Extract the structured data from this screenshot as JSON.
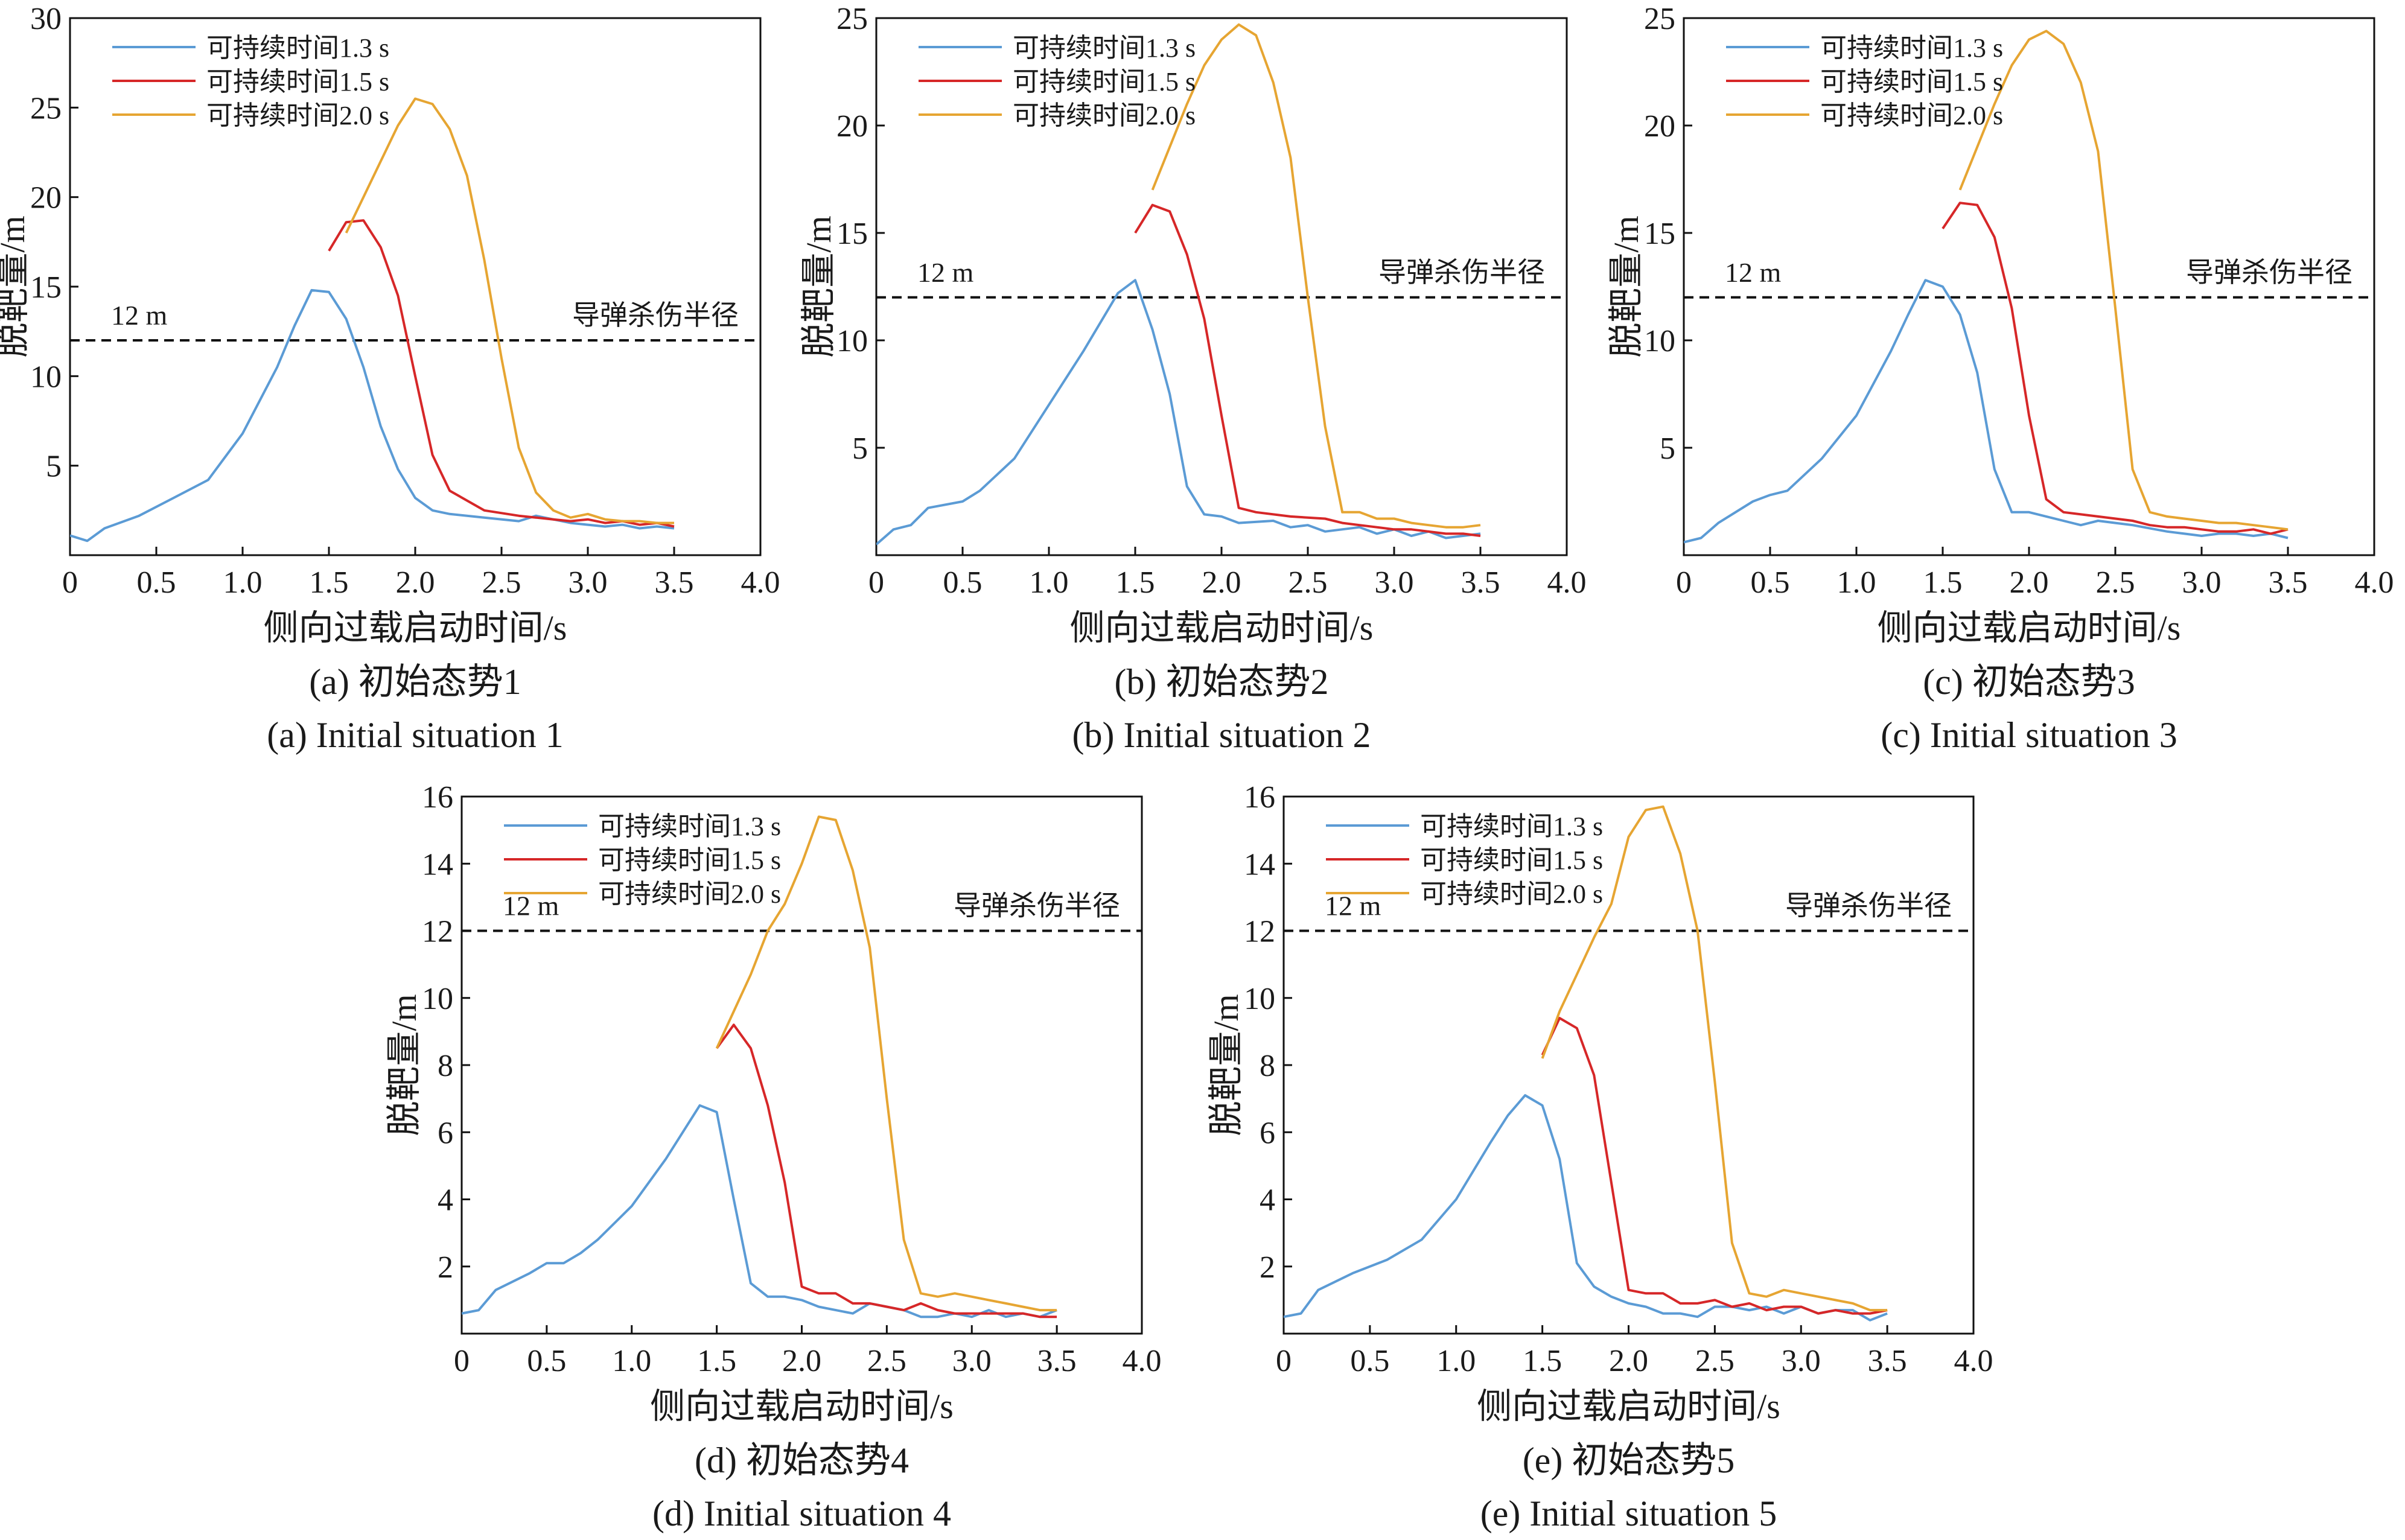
{
  "figure": {
    "legend_labels": [
      "可持续时间1.3 s",
      "可持续时间1.5 s",
      "可持续时间2.0 s"
    ],
    "series_colors": [
      "#5b9bd5",
      "#d62728",
      "#e6a532"
    ],
    "ref_line_color": "#111111",
    "ylabel": "脱靶量/m",
    "xlabel": "侧向过载启动时间/s",
    "ref_label": "12 m",
    "ref_annotation": "导弹杀伤半径"
  },
  "chart_data": [
    {
      "type": "line",
      "caption_cn": "(a) 初始态势1",
      "caption_en": "(a) Initial situation 1",
      "xlabel": "侧向过载启动时间/s",
      "ylabel": "脱靶量/m",
      "xlim": [
        0,
        4.0
      ],
      "ylim": [
        0,
        30
      ],
      "xticks": [
        0,
        0.5,
        1.0,
        1.5,
        2.0,
        2.5,
        3.0,
        3.5,
        4.0
      ],
      "xtick_labels": [
        "0",
        "0.5",
        "1.0",
        "1.5",
        "2.0",
        "2.5",
        "3.0",
        "3.5",
        "4.0"
      ],
      "yticks": [
        5,
        10,
        15,
        20,
        25,
        30
      ],
      "ytick_labels": [
        "5",
        "10",
        "15",
        "20",
        "25",
        "30"
      ],
      "reference_line": {
        "y": 12,
        "label": "12 m",
        "annotation": "导弹杀伤半径"
      },
      "series": [
        {
          "name": "可持续时间1.3 s",
          "x": [
            0,
            0.1,
            0.2,
            0.4,
            0.6,
            0.8,
            1.0,
            1.2,
            1.3,
            1.4,
            1.5,
            1.6,
            1.7,
            1.8,
            1.9,
            2.0,
            2.1,
            2.2,
            2.4,
            2.6,
            2.7,
            2.8,
            2.9,
            3.0,
            3.1,
            3.2,
            3.3,
            3.4,
            3.5
          ],
          "y": [
            1.1,
            0.8,
            1.5,
            2.2,
            3.2,
            4.2,
            6.8,
            10.5,
            12.8,
            14.8,
            14.7,
            13.2,
            10.5,
            7.2,
            4.8,
            3.2,
            2.5,
            2.3,
            2.1,
            1.9,
            2.2,
            2.0,
            1.8,
            1.7,
            1.6,
            1.7,
            1.5,
            1.6,
            1.5
          ]
        },
        {
          "name": "可持续时间1.5 s",
          "x": [
            1.5,
            1.6,
            1.7,
            1.8,
            1.9,
            2.0,
            2.1,
            2.2,
            2.4,
            2.6,
            2.7,
            2.8,
            2.9,
            3.0,
            3.1,
            3.2,
            3.3,
            3.4,
            3.5
          ],
          "y": [
            17.0,
            18.6,
            18.7,
            17.2,
            14.5,
            10.0,
            5.6,
            3.6,
            2.5,
            2.2,
            2.1,
            2.0,
            1.9,
            2.0,
            1.8,
            1.9,
            1.7,
            1.8,
            1.6
          ]
        },
        {
          "name": "可持续时间2.0 s",
          "x": [
            1.6,
            1.7,
            1.8,
            1.9,
            2.0,
            2.1,
            2.2,
            2.3,
            2.4,
            2.5,
            2.6,
            2.7,
            2.8,
            2.9,
            3.0,
            3.1,
            3.2,
            3.3,
            3.4,
            3.5
          ],
          "y": [
            18.0,
            20.0,
            22.0,
            24.0,
            25.5,
            25.2,
            23.8,
            21.2,
            16.5,
            11.0,
            6.0,
            3.5,
            2.5,
            2.1,
            2.3,
            2.0,
            1.9,
            1.9,
            1.8,
            1.8
          ]
        }
      ]
    },
    {
      "type": "line",
      "caption_cn": "(b) 初始态势2",
      "caption_en": "(b) Initial situation 2",
      "xlabel": "侧向过载启动时间/s",
      "ylabel": "脱靶量/m",
      "xlim": [
        0,
        4.0
      ],
      "ylim": [
        0,
        25
      ],
      "xticks": [
        0,
        0.5,
        1.0,
        1.5,
        2.0,
        2.5,
        3.0,
        3.5,
        4.0
      ],
      "xtick_labels": [
        "0",
        "0.5",
        "1.0",
        "1.5",
        "2.0",
        "2.5",
        "3.0",
        "3.5",
        "4.0"
      ],
      "yticks": [
        5,
        10,
        15,
        20,
        25
      ],
      "ytick_labels": [
        "5",
        "10",
        "15",
        "20",
        "25"
      ],
      "reference_line": {
        "y": 12,
        "label": "12 m",
        "annotation": "导弹杀伤半径"
      },
      "series": [
        {
          "name": "可持续时间1.3 s",
          "x": [
            0,
            0.1,
            0.2,
            0.3,
            0.5,
            0.6,
            0.8,
            1.0,
            1.2,
            1.4,
            1.5,
            1.6,
            1.7,
            1.8,
            1.9,
            2.0,
            2.1,
            2.3,
            2.4,
            2.5,
            2.6,
            2.8,
            2.9,
            3.0,
            3.1,
            3.2,
            3.3,
            3.4,
            3.5
          ],
          "y": [
            0.5,
            1.2,
            1.4,
            2.2,
            2.5,
            3.0,
            4.5,
            7.0,
            9.5,
            12.2,
            12.8,
            10.5,
            7.5,
            3.2,
            1.9,
            1.8,
            1.5,
            1.6,
            1.3,
            1.4,
            1.1,
            1.3,
            1.0,
            1.2,
            0.9,
            1.1,
            0.8,
            0.9,
            1.0
          ]
        },
        {
          "name": "可持续时间1.5 s",
          "x": [
            1.5,
            1.6,
            1.7,
            1.8,
            1.9,
            2.0,
            2.1,
            2.2,
            2.4,
            2.6,
            2.7,
            2.8,
            2.9,
            3.0,
            3.1,
            3.2,
            3.3,
            3.4,
            3.5
          ],
          "y": [
            15.0,
            16.3,
            16.0,
            14.0,
            11.0,
            6.5,
            2.2,
            2.0,
            1.8,
            1.7,
            1.5,
            1.4,
            1.3,
            1.2,
            1.2,
            1.1,
            1.0,
            1.0,
            0.9
          ]
        },
        {
          "name": "可持续时间2.0 s",
          "x": [
            1.6,
            1.7,
            1.8,
            1.9,
            2.0,
            2.1,
            2.2,
            2.3,
            2.4,
            2.5,
            2.6,
            2.7,
            2.8,
            2.9,
            3.0,
            3.1,
            3.2,
            3.3,
            3.4,
            3.5
          ],
          "y": [
            17.0,
            19.0,
            21.0,
            22.8,
            24.0,
            24.7,
            24.2,
            22.0,
            18.5,
            12.0,
            6.0,
            2.0,
            2.0,
            1.7,
            1.7,
            1.5,
            1.4,
            1.3,
            1.3,
            1.4
          ]
        }
      ]
    },
    {
      "type": "line",
      "caption_cn": "(c) 初始态势3",
      "caption_en": "(c) Initial situation 3",
      "xlabel": "侧向过载启动时间/s",
      "ylabel": "脱靶量/m",
      "xlim": [
        0,
        4.0
      ],
      "ylim": [
        0,
        25
      ],
      "xticks": [
        0,
        0.5,
        1.0,
        1.5,
        2.0,
        2.5,
        3.0,
        3.5,
        4.0
      ],
      "xtick_labels": [
        "0",
        "0.5",
        "1.0",
        "1.5",
        "2.0",
        "2.5",
        "3.0",
        "3.5",
        "4.0"
      ],
      "yticks": [
        5,
        10,
        15,
        20,
        25
      ],
      "ytick_labels": [
        "5",
        "10",
        "15",
        "20",
        "25"
      ],
      "reference_line": {
        "y": 12,
        "label": "12 m",
        "annotation": "导弹杀伤半径"
      },
      "series": [
        {
          "name": "可持续时间1.3 s",
          "x": [
            0,
            0.1,
            0.2,
            0.4,
            0.5,
            0.6,
            0.8,
            1.0,
            1.2,
            1.3,
            1.4,
            1.5,
            1.6,
            1.7,
            1.8,
            1.9,
            2.0,
            2.1,
            2.3,
            2.4,
            2.5,
            2.6,
            2.8,
            2.9,
            3.0,
            3.1,
            3.2,
            3.3,
            3.4,
            3.5
          ],
          "y": [
            0.6,
            0.8,
            1.5,
            2.5,
            2.8,
            3.0,
            4.5,
            6.5,
            9.5,
            11.2,
            12.8,
            12.5,
            11.2,
            8.5,
            4.0,
            2.0,
            2.0,
            1.8,
            1.4,
            1.6,
            1.5,
            1.4,
            1.1,
            1.0,
            0.9,
            1.0,
            1.0,
            0.9,
            1.0,
            0.8
          ]
        },
        {
          "name": "可持续时间1.5 s",
          "x": [
            1.5,
            1.6,
            1.7,
            1.8,
            1.9,
            2.0,
            2.1,
            2.2,
            2.4,
            2.6,
            2.7,
            2.8,
            2.9,
            3.0,
            3.1,
            3.2,
            3.3,
            3.4,
            3.5
          ],
          "y": [
            15.2,
            16.4,
            16.3,
            14.8,
            11.5,
            6.5,
            2.6,
            2.0,
            1.8,
            1.6,
            1.4,
            1.3,
            1.3,
            1.2,
            1.1,
            1.1,
            1.2,
            1.0,
            1.2
          ]
        },
        {
          "name": "可持续时间2.0 s",
          "x": [
            1.6,
            1.7,
            1.8,
            1.9,
            2.0,
            2.1,
            2.2,
            2.3,
            2.4,
            2.5,
            2.6,
            2.7,
            2.8,
            2.9,
            3.0,
            3.1,
            3.2,
            3.3,
            3.4,
            3.5
          ],
          "y": [
            17.0,
            19.0,
            21.0,
            22.8,
            24.0,
            24.4,
            23.8,
            22.0,
            18.8,
            11.5,
            4.0,
            2.0,
            1.8,
            1.7,
            1.6,
            1.5,
            1.5,
            1.4,
            1.3,
            1.2
          ]
        }
      ]
    },
    {
      "type": "line",
      "caption_cn": "(d) 初始态势4",
      "caption_en": "(d) Initial situation 4",
      "xlabel": "侧向过载启动时间/s",
      "ylabel": "脱靶量/m",
      "xlim": [
        0,
        4.0
      ],
      "ylim": [
        0,
        16
      ],
      "xticks": [
        0,
        0.5,
        1.0,
        1.5,
        2.0,
        2.5,
        3.0,
        3.5,
        4.0
      ],
      "xtick_labels": [
        "0",
        "0.5",
        "1.0",
        "1.5",
        "2.0",
        "2.5",
        "3.0",
        "3.5",
        "4.0"
      ],
      "yticks": [
        2,
        4,
        6,
        8,
        10,
        12,
        14,
        16
      ],
      "ytick_labels": [
        "2",
        "4",
        "6",
        "8",
        "10",
        "12",
        "14",
        "16"
      ],
      "reference_line": {
        "y": 12,
        "label": "12 m",
        "annotation": "导弹杀伤半径"
      },
      "series": [
        {
          "name": "可持续时间1.3 s",
          "x": [
            0,
            0.1,
            0.2,
            0.4,
            0.5,
            0.6,
            0.7,
            0.8,
            1.0,
            1.2,
            1.3,
            1.4,
            1.5,
            1.6,
            1.7,
            1.8,
            1.9,
            2.0,
            2.1,
            2.3,
            2.4,
            2.5,
            2.6,
            2.7,
            2.8,
            2.9,
            3.0,
            3.1,
            3.2,
            3.3,
            3.4,
            3.5
          ],
          "y": [
            0.6,
            0.7,
            1.3,
            1.8,
            2.1,
            2.1,
            2.4,
            2.8,
            3.8,
            5.2,
            6.0,
            6.8,
            6.6,
            4.0,
            1.5,
            1.1,
            1.1,
            1.0,
            0.8,
            0.6,
            0.9,
            0.8,
            0.7,
            0.5,
            0.5,
            0.6,
            0.5,
            0.7,
            0.5,
            0.6,
            0.5,
            0.7
          ]
        },
        {
          "name": "可持续时间1.5 s",
          "x": [
            1.5,
            1.6,
            1.7,
            1.8,
            1.9,
            2.0,
            2.1,
            2.2,
            2.3,
            2.4,
            2.5,
            2.6,
            2.7,
            2.8,
            2.9,
            3.0,
            3.1,
            3.2,
            3.3,
            3.4,
            3.5
          ],
          "y": [
            8.5,
            9.2,
            8.5,
            6.8,
            4.5,
            1.4,
            1.2,
            1.2,
            0.9,
            0.9,
            0.8,
            0.7,
            0.9,
            0.7,
            0.6,
            0.6,
            0.6,
            0.6,
            0.6,
            0.5,
            0.5
          ]
        },
        {
          "name": "可持续时间2.0 s",
          "x": [
            1.5,
            1.6,
            1.7,
            1.8,
            1.9,
            2.0,
            2.1,
            2.2,
            2.3,
            2.4,
            2.5,
            2.6,
            2.7,
            2.8,
            2.9,
            3.0,
            3.1,
            3.2,
            3.3,
            3.4,
            3.5
          ],
          "y": [
            8.5,
            9.6,
            10.7,
            12.0,
            12.8,
            14.0,
            15.4,
            15.3,
            13.8,
            11.5,
            7.0,
            2.8,
            1.2,
            1.1,
            1.2,
            1.1,
            1.0,
            0.9,
            0.8,
            0.7,
            0.7
          ]
        }
      ]
    },
    {
      "type": "line",
      "caption_cn": "(e) 初始态势5",
      "caption_en": "(e) Initial situation 5",
      "xlabel": "侧向过载启动时间/s",
      "ylabel": "脱靶量/m",
      "xlim": [
        0,
        4.0
      ],
      "ylim": [
        0,
        16
      ],
      "xticks": [
        0,
        0.5,
        1.0,
        1.5,
        2.0,
        2.5,
        3.0,
        3.5,
        4.0
      ],
      "xtick_labels": [
        "0",
        "0.5",
        "1.0",
        "1.5",
        "2.0",
        "2.5",
        "3.0",
        "3.5",
        "4.0"
      ],
      "yticks": [
        2,
        4,
        6,
        8,
        10,
        12,
        14,
        16
      ],
      "ytick_labels": [
        "2",
        "4",
        "6",
        "8",
        "10",
        "12",
        "14",
        "16"
      ],
      "reference_line": {
        "y": 12,
        "label": "12 m",
        "annotation": "导弹杀伤半径"
      },
      "series": [
        {
          "name": "可持续时间1.3 s",
          "x": [
            0,
            0.1,
            0.2,
            0.4,
            0.5,
            0.6,
            0.8,
            1.0,
            1.2,
            1.3,
            1.4,
            1.5,
            1.6,
            1.7,
            1.8,
            1.9,
            2.0,
            2.1,
            2.2,
            2.3,
            2.4,
            2.5,
            2.6,
            2.7,
            2.8,
            2.9,
            3.0,
            3.1,
            3.2,
            3.3,
            3.4,
            3.5
          ],
          "y": [
            0.5,
            0.6,
            1.3,
            1.8,
            2.0,
            2.2,
            2.8,
            4.0,
            5.7,
            6.5,
            7.1,
            6.8,
            5.2,
            2.1,
            1.4,
            1.1,
            0.9,
            0.8,
            0.6,
            0.6,
            0.5,
            0.8,
            0.8,
            0.7,
            0.8,
            0.6,
            0.8,
            0.6,
            0.7,
            0.7,
            0.4,
            0.6
          ]
        },
        {
          "name": "可持续时间1.5 s",
          "x": [
            1.5,
            1.6,
            1.7,
            1.8,
            1.9,
            2.0,
            2.1,
            2.2,
            2.3,
            2.4,
            2.5,
            2.6,
            2.7,
            2.8,
            2.9,
            3.0,
            3.1,
            3.2,
            3.3,
            3.4,
            3.5
          ],
          "y": [
            8.3,
            9.4,
            9.1,
            7.7,
            4.5,
            1.3,
            1.2,
            1.2,
            0.9,
            0.9,
            1.0,
            0.8,
            0.9,
            0.7,
            0.8,
            0.8,
            0.6,
            0.7,
            0.6,
            0.6,
            0.7
          ]
        },
        {
          "name": "可持续时间2.0 s",
          "x": [
            1.5,
            1.6,
            1.7,
            1.8,
            1.9,
            2.0,
            2.1,
            2.2,
            2.3,
            2.4,
            2.5,
            2.6,
            2.7,
            2.8,
            2.9,
            3.0,
            3.1,
            3.2,
            3.3,
            3.4,
            3.5
          ],
          "y": [
            8.2,
            9.6,
            10.7,
            11.8,
            12.8,
            14.8,
            15.6,
            15.7,
            14.3,
            12.0,
            7.5,
            2.7,
            1.2,
            1.1,
            1.3,
            1.2,
            1.1,
            1.0,
            0.9,
            0.7,
            0.7
          ]
        }
      ]
    }
  ]
}
